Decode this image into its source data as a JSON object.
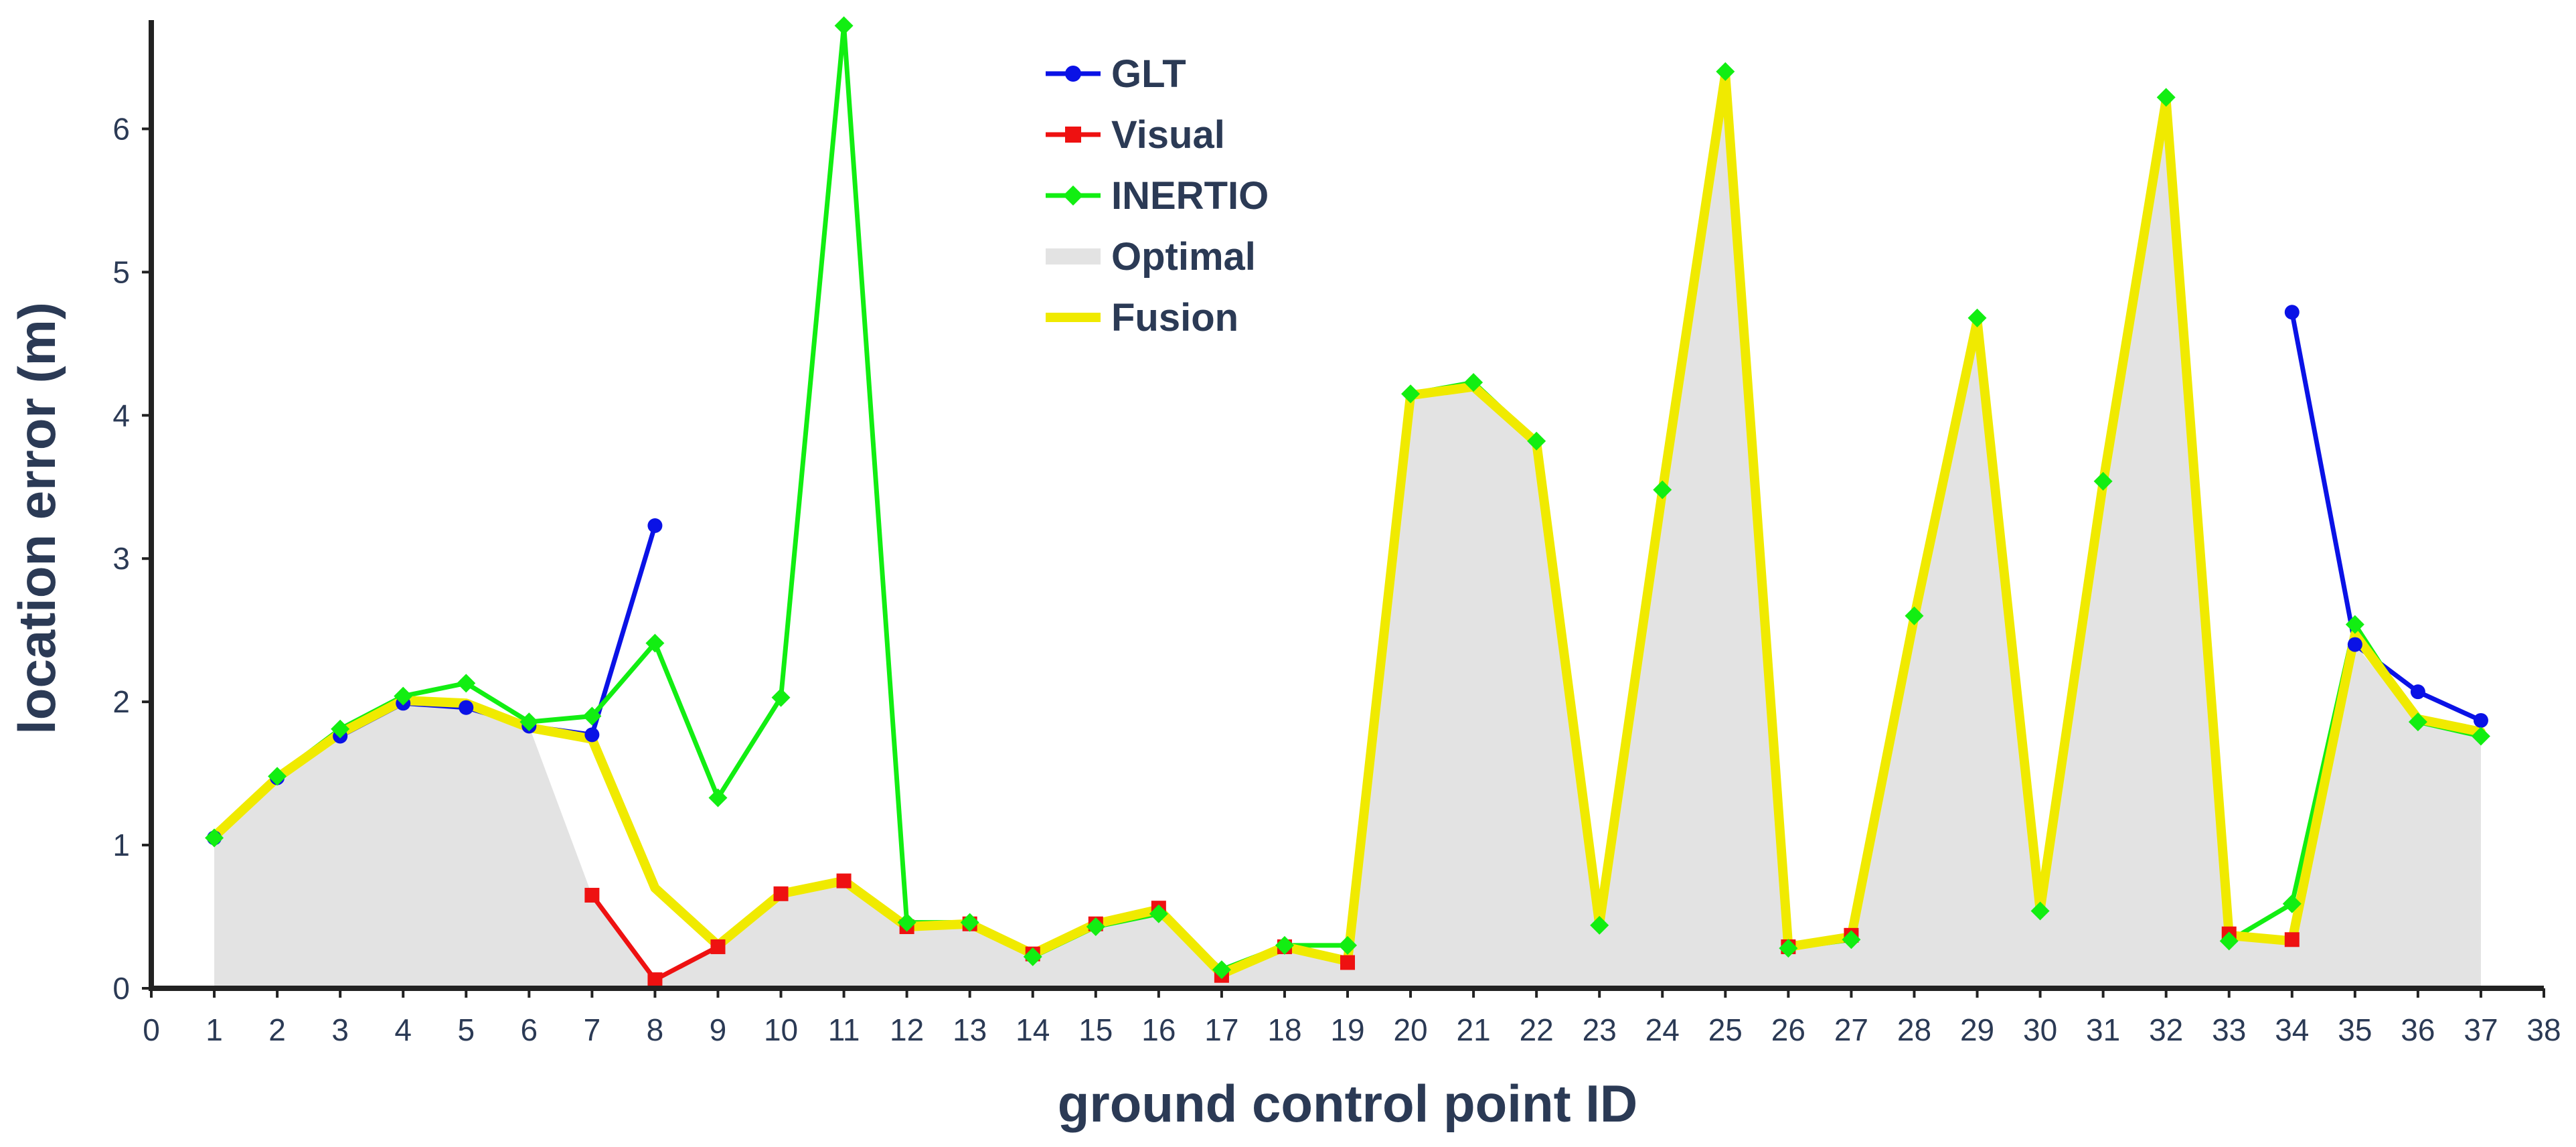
{
  "chart_data": {
    "type": "line",
    "xlabel": "ground control point ID",
    "ylabel": "location error (m)",
    "xlim": [
      0,
      38
    ],
    "ylim": [
      0,
      6.75
    ],
    "xticks": [
      0,
      1,
      2,
      3,
      4,
      5,
      6,
      7,
      8,
      9,
      10,
      11,
      12,
      13,
      14,
      15,
      16,
      17,
      18,
      19,
      20,
      21,
      22,
      23,
      24,
      25,
      26,
      27,
      28,
      29,
      30,
      31,
      32,
      33,
      34,
      35,
      36,
      37,
      38
    ],
    "yticks": [
      0,
      1,
      2,
      3,
      4,
      5,
      6
    ],
    "grid": false,
    "legend_position": "top-center",
    "series": [
      {
        "name": "GLT",
        "color": "#0a12e6",
        "marker": "circle",
        "style": "line",
        "points": [
          [
            1,
            1.05
          ],
          [
            2,
            1.47
          ],
          [
            3,
            1.76
          ],
          [
            4,
            1.99
          ],
          [
            5,
            1.96
          ],
          [
            6,
            1.83
          ],
          [
            7,
            1.77
          ],
          [
            8,
            3.23
          ],
          [
            34,
            4.72
          ],
          [
            35,
            2.4
          ],
          [
            36,
            2.07
          ],
          [
            37,
            1.87
          ]
        ]
      },
      {
        "name": "Visual",
        "color": "#ee1111",
        "marker": "square",
        "style": "line",
        "points": [
          [
            7,
            0.65
          ],
          [
            8,
            0.06
          ],
          [
            9,
            0.29
          ],
          [
            10,
            0.66
          ],
          [
            11,
            0.75
          ],
          [
            12,
            0.43
          ],
          [
            13,
            0.45
          ],
          [
            14,
            0.24
          ],
          [
            15,
            0.45
          ],
          [
            16,
            0.56
          ],
          [
            17,
            0.09
          ],
          [
            18,
            0.29
          ],
          [
            19,
            0.18
          ],
          [
            26,
            0.29
          ],
          [
            27,
            0.37
          ],
          [
            33,
            0.38
          ],
          [
            34,
            0.34
          ]
        ]
      },
      {
        "name": "INERTIO",
        "color": "#12ee12",
        "marker": "diamond",
        "style": "line",
        "points": [
          [
            1,
            1.05
          ],
          [
            2,
            1.48
          ],
          [
            3,
            1.81
          ],
          [
            4,
            2.04
          ],
          [
            5,
            2.13
          ],
          [
            6,
            1.86
          ],
          [
            7,
            1.9
          ],
          [
            8,
            2.41
          ],
          [
            9,
            1.33
          ],
          [
            10,
            2.03
          ],
          [
            11,
            6.72
          ],
          [
            12,
            0.46
          ],
          [
            13,
            0.46
          ],
          [
            14,
            0.22
          ],
          [
            15,
            0.43
          ],
          [
            16,
            0.52
          ],
          [
            17,
            0.13
          ],
          [
            18,
            0.3
          ],
          [
            19,
            0.3
          ],
          [
            20,
            4.15
          ],
          [
            21,
            4.23
          ],
          [
            22,
            3.82
          ],
          [
            23,
            0.44
          ],
          [
            24,
            3.48
          ],
          [
            25,
            6.4
          ],
          [
            26,
            0.28
          ],
          [
            27,
            0.34
          ],
          [
            28,
            2.6
          ],
          [
            29,
            4.68
          ],
          [
            30,
            0.54
          ],
          [
            31,
            3.54
          ],
          [
            32,
            6.22
          ],
          [
            33,
            0.33
          ],
          [
            34,
            0.59
          ],
          [
            35,
            2.54
          ],
          [
            36,
            1.86
          ],
          [
            37,
            1.76
          ]
        ]
      },
      {
        "name": "Optimal",
        "color": "#e3e3e3",
        "marker": "none",
        "style": "area",
        "points": [
          [
            1,
            1.05
          ],
          [
            2,
            1.47
          ],
          [
            3,
            1.76
          ],
          [
            4,
            1.99
          ],
          [
            5,
            1.96
          ],
          [
            6,
            1.83
          ],
          [
            7,
            0.65
          ],
          [
            8,
            0.06
          ],
          [
            9,
            0.29
          ],
          [
            10,
            0.66
          ],
          [
            11,
            0.75
          ],
          [
            12,
            0.43
          ],
          [
            13,
            0.45
          ],
          [
            14,
            0.22
          ],
          [
            15,
            0.43
          ],
          [
            16,
            0.52
          ],
          [
            17,
            0.09
          ],
          [
            18,
            0.29
          ],
          [
            19,
            0.18
          ],
          [
            20,
            4.15
          ],
          [
            21,
            4.23
          ],
          [
            22,
            3.82
          ],
          [
            23,
            0.44
          ],
          [
            24,
            3.48
          ],
          [
            25,
            6.4
          ],
          [
            26,
            0.28
          ],
          [
            27,
            0.34
          ],
          [
            28,
            2.6
          ],
          [
            29,
            4.68
          ],
          [
            30,
            0.54
          ],
          [
            31,
            3.54
          ],
          [
            32,
            6.22
          ],
          [
            33,
            0.33
          ],
          [
            34,
            0.34
          ],
          [
            35,
            2.4
          ],
          [
            36,
            1.86
          ],
          [
            37,
            1.76
          ]
        ]
      },
      {
        "name": "Fusion",
        "color": "#f0ea00",
        "marker": "none",
        "style": "line",
        "points": [
          [
            1,
            1.06
          ],
          [
            2,
            1.47
          ],
          [
            3,
            1.78
          ],
          [
            4,
            2.01
          ],
          [
            5,
            1.99
          ],
          [
            6,
            1.82
          ],
          [
            7,
            1.74
          ],
          [
            8,
            0.7
          ],
          [
            9,
            0.3
          ],
          [
            10,
            0.66
          ],
          [
            11,
            0.75
          ],
          [
            12,
            0.43
          ],
          [
            13,
            0.45
          ],
          [
            14,
            0.24
          ],
          [
            15,
            0.45
          ],
          [
            16,
            0.55
          ],
          [
            17,
            0.1
          ],
          [
            18,
            0.29
          ],
          [
            19,
            0.19
          ],
          [
            20,
            4.14
          ],
          [
            21,
            4.2
          ],
          [
            22,
            3.81
          ],
          [
            23,
            0.45
          ],
          [
            24,
            3.47
          ],
          [
            25,
            6.38
          ],
          [
            26,
            0.29
          ],
          [
            27,
            0.36
          ],
          [
            28,
            2.59
          ],
          [
            29,
            4.66
          ],
          [
            30,
            0.55
          ],
          [
            31,
            3.53
          ],
          [
            32,
            6.2
          ],
          [
            33,
            0.37
          ],
          [
            34,
            0.33
          ],
          [
            35,
            2.47
          ],
          [
            36,
            1.88
          ],
          [
            37,
            1.79
          ]
        ]
      }
    ]
  }
}
